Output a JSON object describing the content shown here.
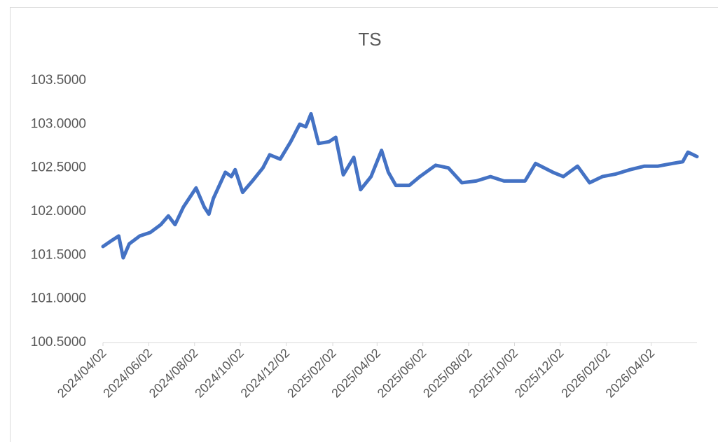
{
  "chart_data": {
    "type": "line",
    "title": "TS",
    "x": [
      "2024/04/02",
      "2024/04/14",
      "2024/04/23",
      "2024/04/29",
      "2024/05/07",
      "2024/05/21",
      "2024/06/04",
      "2024/06/18",
      "2024/06/28",
      "2024/07/07",
      "2024/07/18",
      "2024/08/04",
      "2024/08/15",
      "2024/08/21",
      "2024/08/27",
      "2024/09/12",
      "2024/09/20",
      "2024/09/25",
      "2024/10/05",
      "2024/10/18",
      "2024/11/01",
      "2024/11/10",
      "2024/11/24",
      "2024/12/08",
      "2024/12/20",
      "2024/12/28",
      "2025/01/04",
      "2025/01/14",
      "2025/01/28",
      "2025/02/06",
      "2025/02/16",
      "2025/03/02",
      "2025/03/11",
      "2025/03/25",
      "2025/04/08",
      "2025/04/17",
      "2025/04/27",
      "2025/05/15",
      "2025/05/29",
      "2025/06/19",
      "2025/07/06",
      "2025/07/24",
      "2025/08/12",
      "2025/08/31",
      "2025/09/18",
      "2025/10/16",
      "2025/10/30",
      "2025/11/22",
      "2025/12/06",
      "2025/12/25",
      "2026/01/10",
      "2026/01/27",
      "2026/02/14",
      "2026/03/05",
      "2026/03/24",
      "2026/04/11",
      "2026/04/30",
      "2026/05/14",
      "2026/05/21",
      "2026/06/02"
    ],
    "series": [
      {
        "name": "TS",
        "color": "#4472c4",
        "values": [
          101.6,
          101.67,
          101.72,
          101.47,
          101.63,
          101.72,
          101.76,
          101.85,
          101.95,
          101.85,
          102.05,
          102.27,
          102.05,
          101.97,
          102.15,
          102.45,
          102.4,
          102.48,
          102.22,
          102.35,
          102.5,
          102.65,
          102.6,
          102.8,
          103.0,
          102.97,
          103.12,
          102.78,
          102.8,
          102.85,
          102.42,
          102.62,
          102.25,
          102.4,
          102.7,
          102.45,
          102.3,
          102.3,
          102.4,
          102.53,
          102.5,
          102.33,
          102.35,
          102.4,
          102.35,
          102.35,
          102.55,
          102.45,
          102.4,
          102.52,
          102.33,
          102.4,
          102.43,
          102.48,
          102.52,
          102.52,
          102.55,
          102.57,
          102.68,
          102.63
        ]
      }
    ],
    "xlim": [
      "2024/04/02",
      "2026/06/02"
    ],
    "xticks": [
      "2024/04/02",
      "2024/06/02",
      "2024/08/02",
      "2024/10/02",
      "2024/12/02",
      "2025/02/02",
      "2025/04/02",
      "2025/06/02",
      "2025/08/02",
      "2025/10/02",
      "2025/12/02",
      "2026/02/02",
      "2026/04/02"
    ],
    "ylim": [
      100.5,
      103.5
    ],
    "yticks": [
      {
        "value": 100.5,
        "label": "100.5000"
      },
      {
        "value": 101,
        "label": "101.0000"
      },
      {
        "value": 101.5,
        "label": "101.5000"
      },
      {
        "value": 102,
        "label": "102.0000"
      },
      {
        "value": 102.5,
        "label": "102.5000"
      },
      {
        "value": 103,
        "label": "103.0000"
      },
      {
        "value": 103.5,
        "label": "103.5000"
      }
    ],
    "grid": false
  }
}
